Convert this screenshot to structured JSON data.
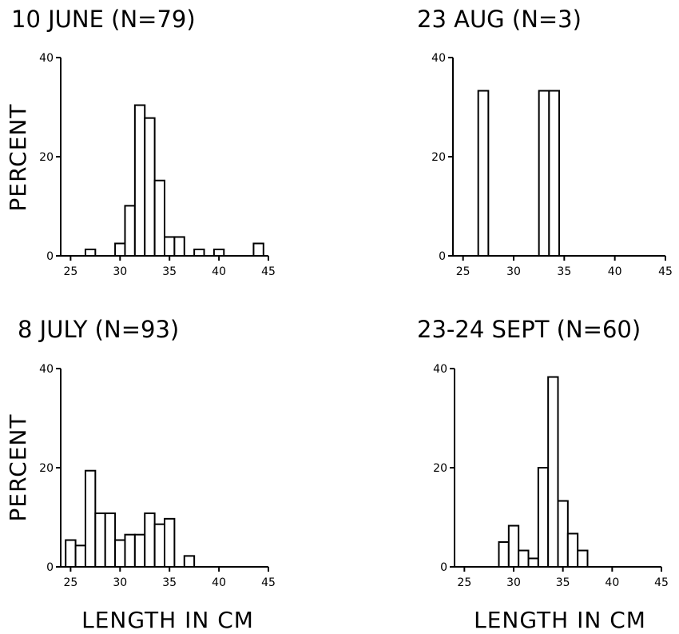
{
  "figure": {
    "ylabel": "PERCENT",
    "xlabel": "LENGTH IN CM"
  },
  "chart_data": [
    {
      "type": "bar",
      "title": "10 JUNE  (N=79)",
      "xlabel": "LENGTH IN CM",
      "ylabel": "PERCENT",
      "xlim": [
        24,
        45
      ],
      "ylim": [
        0,
        40
      ],
      "xticks": [
        25,
        30,
        35,
        40,
        45
      ],
      "yticks": [
        0,
        20,
        40
      ],
      "bin_width": 1,
      "bins": [
        {
          "x": 27,
          "value": 1.3
        },
        {
          "x": 30,
          "value": 2.5
        },
        {
          "x": 31,
          "value": 10.1
        },
        {
          "x": 32,
          "value": 30.4
        },
        {
          "x": 33,
          "value": 27.8
        },
        {
          "x": 34,
          "value": 15.2
        },
        {
          "x": 35,
          "value": 3.8
        },
        {
          "x": 36,
          "value": 3.8
        },
        {
          "x": 38,
          "value": 1.3
        },
        {
          "x": 40,
          "value": 1.3
        },
        {
          "x": 44,
          "value": 2.5
        }
      ]
    },
    {
      "type": "bar",
      "title": "23 AUG   (N=3)",
      "xlabel": "",
      "ylabel": "",
      "xlim": [
        24,
        45
      ],
      "ylim": [
        0,
        40
      ],
      "xticks": [
        25,
        30,
        35,
        40,
        45
      ],
      "yticks": [
        0,
        20,
        40
      ],
      "bin_width": 1,
      "bins": [
        {
          "x": 27,
          "value": 33.3
        },
        {
          "x": 33,
          "value": 33.3
        },
        {
          "x": 34,
          "value": 33.3
        }
      ]
    },
    {
      "type": "bar",
      "title": "8 JULY   (N=93)",
      "xlabel": "LENGTH IN CM",
      "ylabel": "PERCENT",
      "xlim": [
        24,
        45
      ],
      "ylim": [
        0,
        40
      ],
      "xticks": [
        25,
        30,
        35,
        40,
        45
      ],
      "yticks": [
        0,
        20,
        40
      ],
      "bin_width": 1,
      "bins": [
        {
          "x": 25,
          "value": 5.4
        },
        {
          "x": 26,
          "value": 4.3
        },
        {
          "x": 27,
          "value": 19.4
        },
        {
          "x": 28,
          "value": 10.8
        },
        {
          "x": 29,
          "value": 10.8
        },
        {
          "x": 30,
          "value": 5.4
        },
        {
          "x": 31,
          "value": 6.5
        },
        {
          "x": 32,
          "value": 6.5
        },
        {
          "x": 33,
          "value": 10.8
        },
        {
          "x": 34,
          "value": 8.6
        },
        {
          "x": 35,
          "value": 9.7
        },
        {
          "x": 37,
          "value": 2.2
        }
      ]
    },
    {
      "type": "bar",
      "title": "23-24 SEPT (N=60)",
      "xlabel": "LENGTH IN CM",
      "ylabel": "",
      "xlim": [
        24,
        45
      ],
      "ylim": [
        0,
        40
      ],
      "xticks": [
        25,
        30,
        35,
        40,
        45
      ],
      "yticks": [
        0,
        20,
        40
      ],
      "bin_width": 1,
      "bins": [
        {
          "x": 29,
          "value": 5.0
        },
        {
          "x": 30,
          "value": 8.3
        },
        {
          "x": 31,
          "value": 3.3
        },
        {
          "x": 32,
          "value": 1.7
        },
        {
          "x": 33,
          "value": 20.0
        },
        {
          "x": 34,
          "value": 38.3
        },
        {
          "x": 35,
          "value": 13.3
        },
        {
          "x": 36,
          "value": 6.7
        },
        {
          "x": 37,
          "value": 3.3
        }
      ]
    }
  ]
}
